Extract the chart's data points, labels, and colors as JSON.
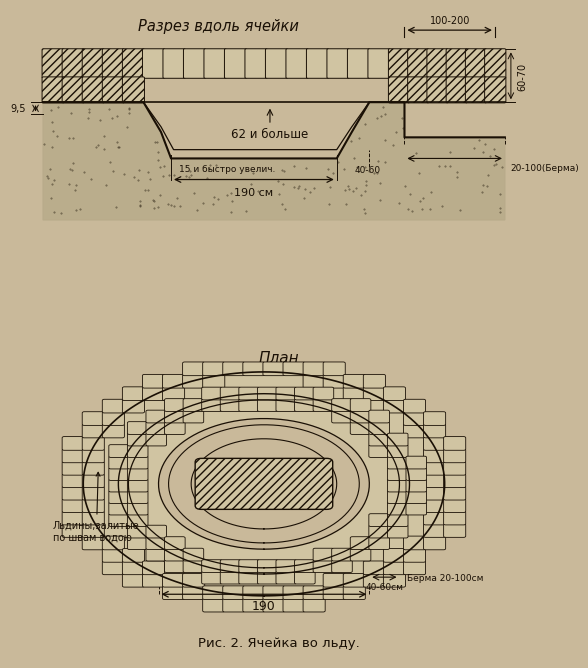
{
  "bg_color": "#c9b99a",
  "title_top": "Разрез вдоль ячейки",
  "title_bottom": "План",
  "caption": "Рис. 2. Ячейка во льду.",
  "label_62": "62 и больше",
  "label_15": "15 и быстро увелич.",
  "label_190": "190 см",
  "label_4060": "40-60",
  "label_20100": "20-100(Берма)",
  "label_9_5": "9,5",
  "label_100200": "100-200",
  "label_6070": "60-70",
  "plan_190": "190",
  "plan_4060": "40-60см",
  "plan_berma": "Берма 20-100см",
  "plan_label": "Льдины,залитые\nпо швам водою",
  "dark_color": "#1a1005",
  "ice_color": "#d0c4a2",
  "sand_color": "#b8ab8a"
}
